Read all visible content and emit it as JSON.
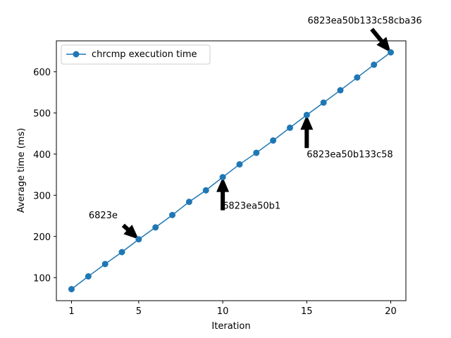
{
  "chart_data": {
    "type": "line",
    "title": "",
    "xlabel": "Iteration",
    "ylabel": "Average time (ms)",
    "xlim": [
      0.1,
      20.9
    ],
    "ylim": [
      44,
      675
    ],
    "xticks": [
      1,
      5,
      10,
      15,
      20
    ],
    "yticks": [
      100,
      200,
      300,
      400,
      500,
      600
    ],
    "grid": false,
    "legend": {
      "placement": "upper-left"
    },
    "series": [
      {
        "name": "chrcmp execution time",
        "color": "#1f77b4",
        "marker": "circle",
        "x": [
          1,
          2,
          3,
          4,
          5,
          6,
          7,
          8,
          9,
          10,
          11,
          12,
          13,
          14,
          15,
          16,
          17,
          18,
          19,
          20
        ],
        "y": [
          72,
          103,
          133,
          162,
          193,
          222,
          252,
          284,
          312,
          344,
          375,
          403,
          433,
          464,
          495,
          525,
          555,
          586,
          617,
          647
        ]
      }
    ],
    "annotations": [
      {
        "text": "6823e",
        "x": 5,
        "y": 193
      },
      {
        "text": "6823ea50b1",
        "x": 10,
        "y": 344
      },
      {
        "text": "6823ea50b133c58",
        "x": 15,
        "y": 495
      },
      {
        "text": "6823ea50b133c58cba36",
        "x": 20,
        "y": 647
      }
    ]
  }
}
